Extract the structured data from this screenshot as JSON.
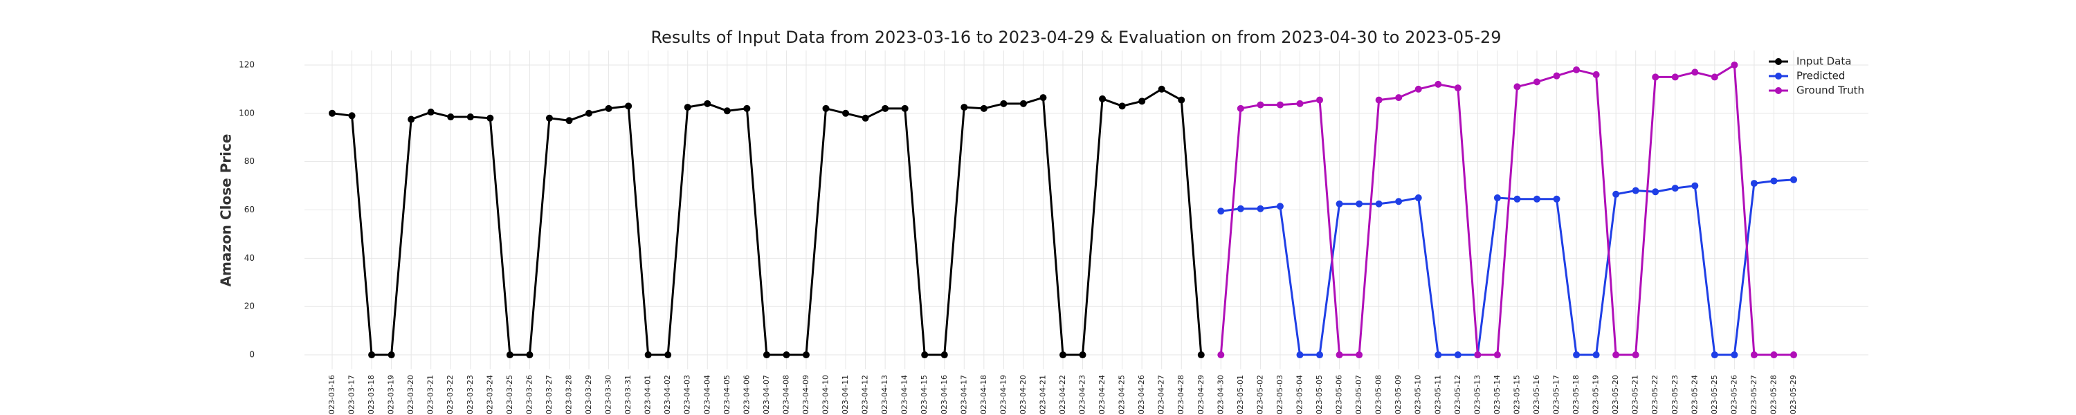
{
  "chart_data": {
    "type": "line",
    "title": "Results of Input Data from 2023-03-16 to 2023-04-29 & Evaluation on from 2023-04-30 to 2023-05-29",
    "y_label": "Amazon Close Price",
    "categories": [
      "2023-03-16",
      "2023-03-17",
      "2023-03-18",
      "2023-03-19",
      "2023-03-20",
      "2023-03-21",
      "2023-03-22",
      "2023-03-23",
      "2023-03-24",
      "2023-03-25",
      "2023-03-26",
      "2023-03-27",
      "2023-03-28",
      "2023-03-29",
      "2023-03-30",
      "2023-03-31",
      "2023-04-01",
      "2023-04-02",
      "2023-04-03",
      "2023-04-04",
      "2023-04-05",
      "2023-04-06",
      "2023-04-07",
      "2023-04-08",
      "2023-04-09",
      "2023-04-10",
      "2023-04-11",
      "2023-04-12",
      "2023-04-13",
      "2023-04-14",
      "2023-04-15",
      "2023-04-16",
      "2023-04-17",
      "2023-04-18",
      "2023-04-19",
      "2023-04-20",
      "2023-04-21",
      "2023-04-22",
      "2023-04-23",
      "2023-04-24",
      "2023-04-25",
      "2023-04-26",
      "2023-04-27",
      "2023-04-28",
      "2023-04-29",
      "2023-04-30",
      "2023-05-01",
      "2023-05-02",
      "2023-05-03",
      "2023-05-04",
      "2023-05-05",
      "2023-05-06",
      "2023-05-07",
      "2023-05-08",
      "2023-05-09",
      "2023-05-10",
      "2023-05-11",
      "2023-05-12",
      "2023-05-13",
      "2023-05-14",
      "2023-05-15",
      "2023-05-16",
      "2023-05-17",
      "2023-05-18",
      "2023-05-19",
      "2023-05-20",
      "2023-05-21",
      "2023-05-22",
      "2023-05-23",
      "2023-05-24",
      "2023-05-25",
      "2023-05-26",
      "2023-05-27",
      "2023-05-28",
      "2023-05-29"
    ],
    "series": [
      {
        "name": "Input Data",
        "color": "#000000",
        "values": [
          100,
          99,
          0,
          0,
          97.5,
          100.5,
          98.5,
          98.5,
          98,
          0,
          0,
          98,
          97,
          100,
          102,
          103,
          0,
          0,
          102.5,
          104,
          101,
          102,
          0,
          0,
          0,
          102,
          100,
          98,
          102,
          102,
          0,
          0,
          102.5,
          102,
          104,
          104,
          106.5,
          0,
          0,
          106,
          103,
          105,
          110,
          105.5,
          0,
          null,
          null,
          null,
          null,
          null,
          null,
          null,
          null,
          null,
          null,
          null,
          null,
          null,
          null,
          null,
          null,
          null,
          null,
          null,
          null,
          null,
          null,
          null,
          null,
          null,
          null,
          null,
          null,
          null,
          null
        ]
      },
      {
        "name": "Predicted",
        "color": "#1f3fe6",
        "values": [
          null,
          null,
          null,
          null,
          null,
          null,
          null,
          null,
          null,
          null,
          null,
          null,
          null,
          null,
          null,
          null,
          null,
          null,
          null,
          null,
          null,
          null,
          null,
          null,
          null,
          null,
          null,
          null,
          null,
          null,
          null,
          null,
          null,
          null,
          null,
          null,
          null,
          null,
          null,
          null,
          null,
          null,
          null,
          null,
          null,
          59.5,
          60.5,
          60.5,
          61.5,
          0,
          0,
          62.5,
          62.5,
          62.5,
          63.5,
          65,
          0,
          0,
          0,
          65,
          64.5,
          64.5,
          64.5,
          0,
          0,
          66.5,
          68,
          67.5,
          69,
          70,
          0,
          0,
          71,
          72,
          72.5
        ]
      },
      {
        "name": "Ground Truth",
        "color": "#b00fb8",
        "values": [
          null,
          null,
          null,
          null,
          null,
          null,
          null,
          null,
          null,
          null,
          null,
          null,
          null,
          null,
          null,
          null,
          null,
          null,
          null,
          null,
          null,
          null,
          null,
          null,
          null,
          null,
          null,
          null,
          null,
          null,
          null,
          null,
          null,
          null,
          null,
          null,
          null,
          null,
          null,
          null,
          null,
          null,
          null,
          null,
          null,
          0,
          102,
          103.5,
          103.5,
          104,
          105.5,
          0,
          0,
          105.5,
          106.5,
          110,
          112,
          110.5,
          0,
          0,
          111,
          113,
          115.5,
          118,
          116,
          0,
          0,
          115,
          115,
          117,
          115,
          120,
          0,
          0,
          0
        ]
      }
    ],
    "ylim": [
      -6,
      126
    ],
    "yticks": [
      0,
      20,
      40,
      60,
      80,
      100,
      120
    ],
    "grid": true,
    "legend": "upper right"
  }
}
